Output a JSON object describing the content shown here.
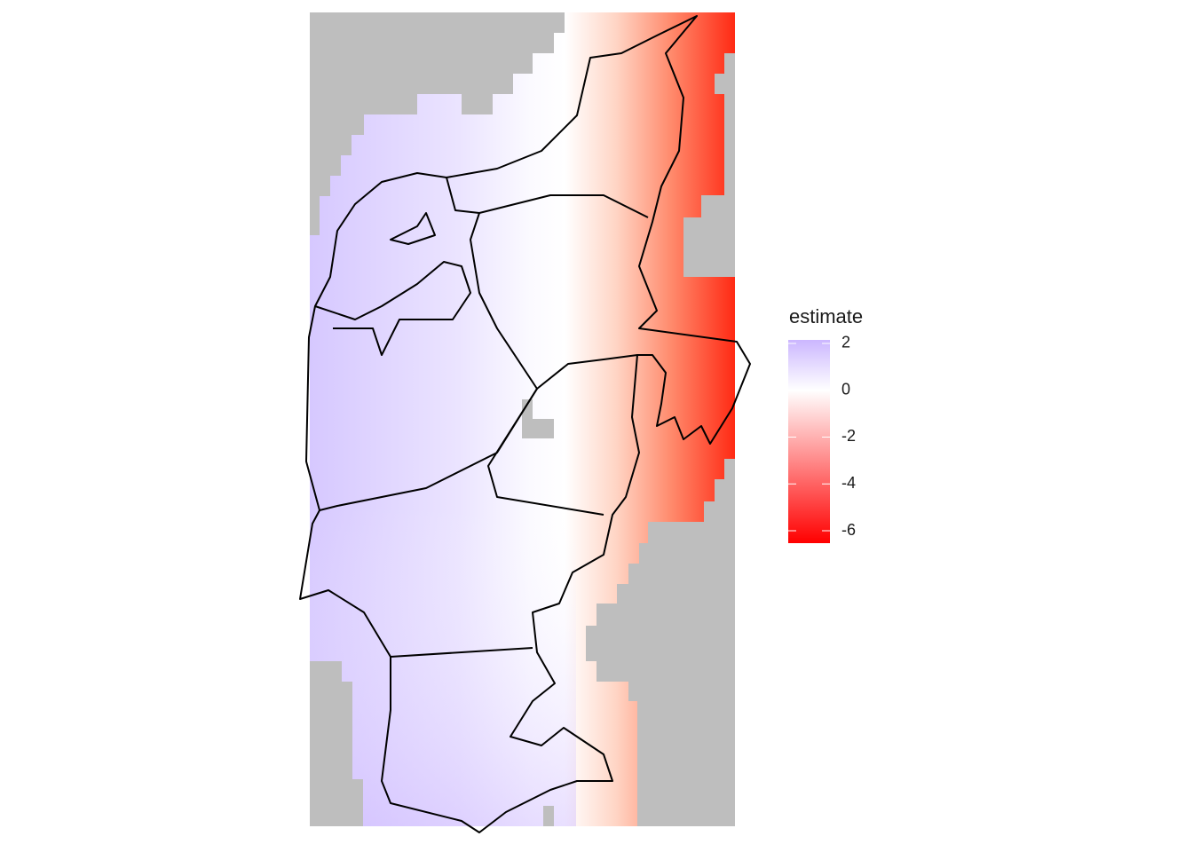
{
  "legend": {
    "title": "estimate",
    "range": [
      -6.53,
      2.15
    ],
    "ticks": [
      2,
      0,
      -2,
      -4,
      -6
    ],
    "colors": {
      "low": "#ff0000",
      "mid": "#ffffff",
      "high": "#cbb6ff"
    }
  }
}
